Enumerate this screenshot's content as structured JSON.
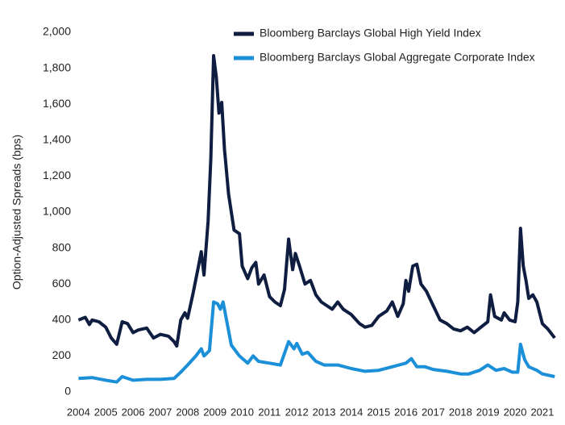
{
  "chart_data": {
    "type": "line",
    "y_label": "Option-Adjusted Spreads (bps)",
    "xlim": [
      2003.9,
      2021.8
    ],
    "xticks": [
      2004,
      2005,
      2006,
      2007,
      2008,
      2009,
      2010,
      2011,
      2012,
      2013,
      2014,
      2015,
      2016,
      2017,
      2018,
      2019,
      2020,
      2021
    ],
    "ylim": [
      0,
      2000
    ],
    "yticks": [
      0,
      200,
      400,
      600,
      800,
      {
        "value": 1000,
        "label": "1,000"
      },
      {
        "value": 1200,
        "label": "1,200"
      },
      {
        "value": 1400,
        "label": "1,400"
      },
      {
        "value": 1600,
        "label": "1,600"
      },
      {
        "value": 1800,
        "label": "1,800"
      },
      {
        "value": 2000,
        "label": "2,000"
      }
    ],
    "grid": false,
    "legend": "top-right",
    "series": [
      {
        "name": "Bloomberg Barclays Global High Yield Index",
        "color": "#0e1d40",
        "x": [
          2004.0,
          2004.25,
          2004.4,
          2004.5,
          2004.75,
          2005.0,
          2005.2,
          2005.4,
          2005.6,
          2005.8,
          2006.0,
          2006.2,
          2006.5,
          2006.75,
          2007.0,
          2007.3,
          2007.5,
          2007.6,
          2007.75,
          2007.9,
          2008.0,
          2008.2,
          2008.4,
          2008.5,
          2008.6,
          2008.75,
          2008.85,
          2008.95,
          2009.05,
          2009.15,
          2009.25,
          2009.35,
          2009.5,
          2009.7,
          2009.9,
          2010.0,
          2010.2,
          2010.35,
          2010.5,
          2010.6,
          2010.8,
          2011.0,
          2011.2,
          2011.4,
          2011.55,
          2011.7,
          2011.85,
          2011.95,
          2012.1,
          2012.3,
          2012.5,
          2012.7,
          2012.9,
          2013.1,
          2013.3,
          2013.5,
          2013.7,
          2014.0,
          2014.3,
          2014.5,
          2014.75,
          2015.0,
          2015.3,
          2015.5,
          2015.7,
          2015.9,
          2016.0,
          2016.1,
          2016.25,
          2016.4,
          2016.55,
          2016.75,
          2017.0,
          2017.25,
          2017.5,
          2017.75,
          2018.0,
          2018.25,
          2018.5,
          2018.75,
          2019.0,
          2019.1,
          2019.25,
          2019.5,
          2019.6,
          2019.8,
          2020.0,
          2020.1,
          2020.2,
          2020.3,
          2020.4,
          2020.5,
          2020.65,
          2020.8,
          2021.0,
          2021.2,
          2021.45
        ],
        "values": [
          400,
          415,
          375,
          400,
          390,
          360,
          300,
          265,
          390,
          380,
          330,
          345,
          355,
          300,
          320,
          310,
          280,
          255,
          400,
          440,
          410,
          550,
          700,
          780,
          650,
          950,
          1300,
          1870,
          1750,
          1550,
          1610,
          1350,
          1100,
          900,
          880,
          700,
          630,
          690,
          720,
          600,
          650,
          530,
          500,
          480,
          570,
          850,
          680,
          770,
          700,
          600,
          620,
          540,
          500,
          480,
          460,
          500,
          460,
          430,
          380,
          360,
          370,
          420,
          450,
          500,
          420,
          490,
          620,
          560,
          700,
          710,
          600,
          560,
          480,
          400,
          380,
          350,
          340,
          360,
          330,
          360,
          390,
          540,
          420,
          400,
          440,
          400,
          390,
          500,
          910,
          700,
          620,
          520,
          540,
          500,
          380,
          350,
          300
        ]
      },
      {
        "name": "Bloomberg Barclays Global Aggregate Corporate Index",
        "color": "#1b8fd8",
        "x": [
          2004.0,
          2004.5,
          2005.0,
          2005.4,
          2005.6,
          2006.0,
          2006.5,
          2007.0,
          2007.5,
          2007.75,
          2008.0,
          2008.3,
          2008.5,
          2008.6,
          2008.8,
          2008.95,
          2009.1,
          2009.2,
          2009.3,
          2009.45,
          2009.6,
          2009.9,
          2010.2,
          2010.4,
          2010.6,
          2011.0,
          2011.4,
          2011.7,
          2011.9,
          2012.0,
          2012.2,
          2012.4,
          2012.7,
          2013.0,
          2013.5,
          2014.0,
          2014.5,
          2015.0,
          2015.5,
          2016.0,
          2016.2,
          2016.4,
          2016.7,
          2017.0,
          2017.5,
          2018.0,
          2018.3,
          2018.7,
          2019.0,
          2019.3,
          2019.6,
          2019.9,
          2020.1,
          2020.2,
          2020.35,
          2020.5,
          2020.8,
          2021.0,
          2021.45
        ],
        "values": [
          75,
          80,
          65,
          55,
          85,
          65,
          70,
          70,
          75,
          110,
          150,
          200,
          240,
          200,
          230,
          500,
          490,
          460,
          500,
          380,
          260,
          200,
          160,
          200,
          170,
          160,
          150,
          280,
          240,
          270,
          210,
          220,
          170,
          150,
          150,
          130,
          115,
          120,
          140,
          160,
          185,
          140,
          140,
          125,
          115,
          100,
          100,
          120,
          150,
          120,
          130,
          110,
          110,
          265,
          180,
          140,
          120,
          100,
          85
        ]
      }
    ]
  }
}
